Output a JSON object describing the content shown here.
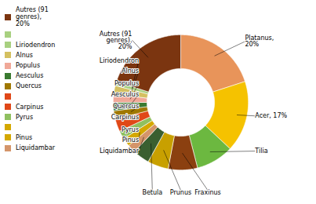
{
  "chart_data": {
    "type": "pie",
    "categories": [
      "Platanus",
      "Acer",
      "Tilia",
      "Fraxinus",
      "Prunus",
      "Betula",
      "Liquidambar",
      "Pinus",
      "Pyrus",
      "Carpinus",
      "Quercus",
      "Aesculus",
      "Populus",
      "Alnus",
      "Liriodendron",
      "Autres"
    ],
    "values": [
      20,
      17,
      9,
      7,
      5,
      4,
      2,
      2,
      2,
      3,
      2,
      2,
      2,
      2,
      1,
      20
    ],
    "colors": [
      "#E8945A",
      "#F5C200",
      "#6CB840",
      "#8B4010",
      "#C8A000",
      "#3A5F30",
      "#D4956A",
      "#D4A800",
      "#90C060",
      "#E04818",
      "#A07800",
      "#3A7A30",
      "#F0A898",
      "#D4C060",
      "#A8D080",
      "#7B3510"
    ],
    "annotations": [
      {
        "category": "Platanus",
        "text": "Platanus,\n20%"
      },
      {
        "category": "Acer",
        "text": "Acer, 17%"
      },
      {
        "category": "Tilia",
        "text": "Tilia"
      },
      {
        "category": "Fraxinus",
        "text": "Fraxinus"
      },
      {
        "category": "Prunus",
        "text": "Prunus"
      },
      {
        "category": "Betula",
        "text": "Betula"
      },
      {
        "category": "Liquidambar",
        "text": "Liquidambar"
      },
      {
        "category": "Pinus",
        "text": "Pinus"
      },
      {
        "category": "Pyrus",
        "text": "Pyrus"
      },
      {
        "category": "Carpinus",
        "text": "Carpinus"
      },
      {
        "category": "Quercus",
        "text": "Quercus"
      },
      {
        "category": "Aesculus",
        "text": "Aesculus"
      },
      {
        "category": "Populus",
        "text": "Populus"
      },
      {
        "category": "Alnus",
        "text": "Alnus"
      },
      {
        "category": "Liriodendron",
        "text": "Liriodendron"
      },
      {
        "category": "Autres",
        "text": "Autres (91\ngenres),\n20%"
      }
    ],
    "legend": "left",
    "legend_entries": [
      {
        "label": "Autres (91\ngenres),\n20%",
        "color": "#7B3510"
      },
      {
        "label": null,
        "color": "#A8D080"
      },
      {
        "label": "Liriodendron",
        "color": "#A8D080"
      },
      {
        "label": "Alnus",
        "color": "#D4C060"
      },
      {
        "label": "Populus",
        "color": "#F0A898"
      },
      {
        "label": "Aesculus",
        "color": "#3A7A30"
      },
      {
        "label": "Quercus",
        "color": "#A07800"
      },
      {
        "label": null,
        "color": "#E04818"
      },
      {
        "label": "Carpinus",
        "color": "#E04818"
      },
      {
        "label": "Pyrus",
        "color": "#90C060"
      },
      {
        "label": null,
        "color": "#D4A800"
      },
      {
        "label": "Pinus",
        "color": "#D4A800"
      },
      {
        "label": "Liquidambar",
        "color": "#D4956A"
      }
    ]
  }
}
